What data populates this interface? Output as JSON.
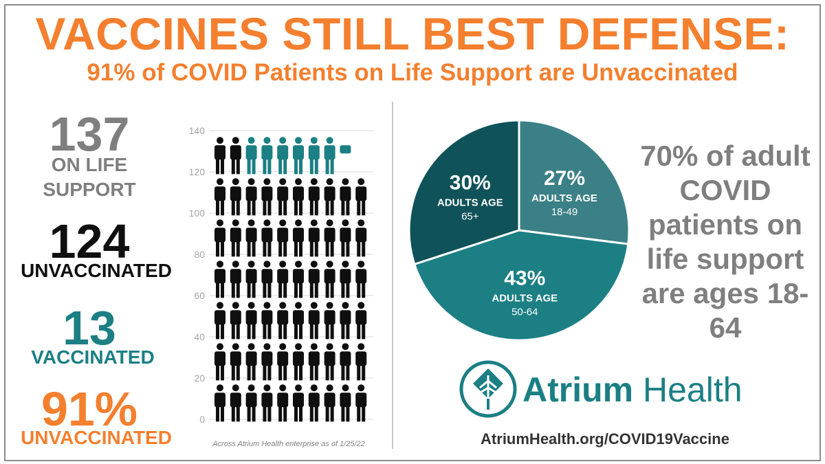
{
  "header": {
    "title": "VACCINES STILL BEST DEFENSE:",
    "subtitle": "91% of COVID Patients on Life Support are Unvaccinated"
  },
  "stats": {
    "total_number": "137",
    "total_label": "ON LIFE SUPPORT",
    "unvaccinated_number": "124",
    "unvaccinated_label": "UNVACCINATED",
    "vaccinated_number": "13",
    "vaccinated_label": "VACCINATED",
    "percent_number": "91%",
    "percent_label": "UNVACCINATED"
  },
  "footnote": "Across Atrium Health enterprise as of 1/25/22",
  "right_note": "70% of adult COVID patients on life support are ages 18-64",
  "brand": {
    "name_bold": "Atrium",
    "name_light": " Health",
    "url": "AtriumHealth.org/COVID19Vaccine"
  },
  "colors": {
    "orange": "#f47f2e",
    "teal": "#1b7f84",
    "dark_teal": "#0f5259",
    "mid_teal": "#3b8086",
    "gray": "#7f7f7f",
    "black": "#0f0f0f"
  },
  "icons": {
    "person": "person-icon",
    "logo": "atrium-leaf-logo"
  },
  "chart_data": [
    {
      "type": "bar",
      "subtype": "pictograph",
      "ylim": [
        0,
        140
      ],
      "yticks": [
        0,
        20,
        40,
        60,
        80,
        100,
        120,
        140
      ],
      "units_per_icon": 2,
      "series": [
        {
          "name": "UNVACCINATED",
          "value": 124,
          "color": "#0f0f0f"
        },
        {
          "name": "VACCINATED",
          "value": 13,
          "color": "#1b7f84"
        }
      ],
      "total": 137
    },
    {
      "type": "pie",
      "slices": [
        {
          "pct": "30%",
          "label": "ADULTS AGE",
          "range": "65+",
          "value": 30,
          "color": "#0f5259"
        },
        {
          "pct": "27%",
          "label": "ADULTS AGE",
          "range": "18-49",
          "value": 27,
          "color": "#3b8086"
        },
        {
          "pct": "43%",
          "label": "ADULTS AGE",
          "range": "50-64",
          "value": 43,
          "color": "#1b7f84"
        }
      ]
    }
  ]
}
